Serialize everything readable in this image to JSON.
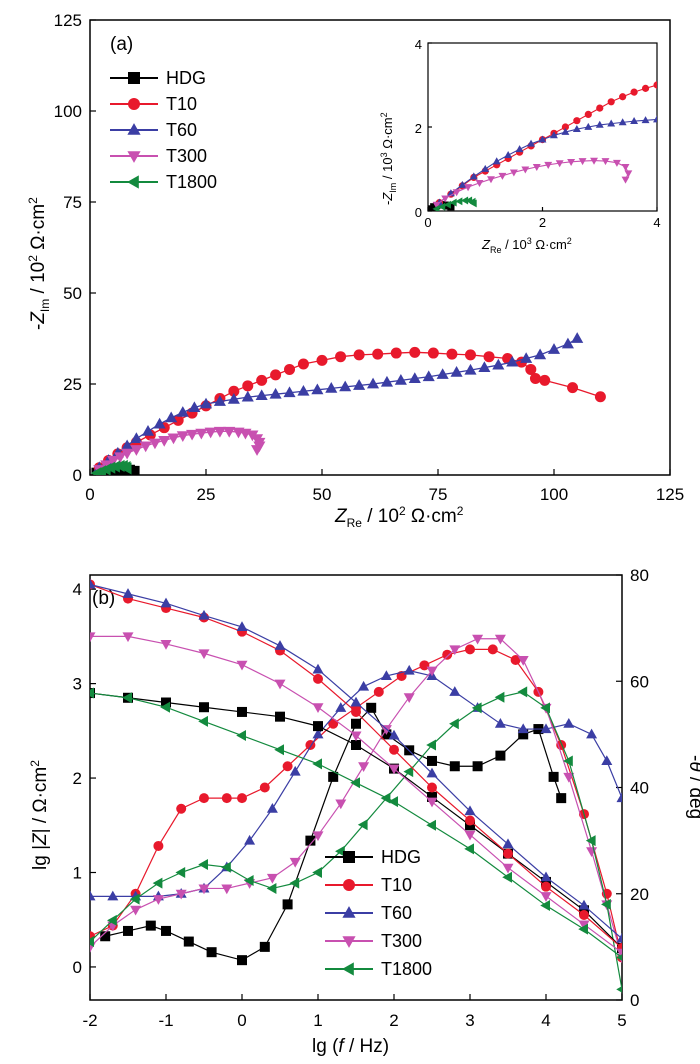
{
  "series_styles": [
    {
      "name": "HDG",
      "color": "#000000",
      "marker": "square"
    },
    {
      "name": "T10",
      "color": "#e8192c",
      "marker": "circle"
    },
    {
      "name": "T60",
      "color": "#3b3ea4",
      "marker": "triangle-up"
    },
    {
      "name": "T300",
      "color": "#c850b0",
      "marker": "triangle-down"
    },
    {
      "name": "T1800",
      "color": "#138a3e",
      "marker": "triangle-left"
    }
  ],
  "chart_data": [
    {
      "type": "scatter",
      "panel_label": "(a)",
      "xlabel": "Z_Re / 10^2 Ω·cm^2",
      "xlabel_main": "Z",
      "xlabel_sub": "Re",
      "xlabel_rest": " / 10",
      "xlabel_exp": "2",
      "xlabel_unit": " Ω·cm",
      "xlabel_unit_exp": "2",
      "ylabel": "-Z_Im / 10^2 Ω·cm^2",
      "ylabel_pre": "-",
      "ylabel_main": "Z",
      "ylabel_sub": "Im",
      "ylabel_rest": " / 10",
      "ylabel_exp": "2",
      "ylabel_unit": " Ω·cm",
      "ylabel_unit_exp": "2",
      "xlim": [
        0,
        125
      ],
      "ylim": [
        0,
        125
      ],
      "xticks": [
        "0",
        "25",
        "50",
        "75",
        "100",
        "125"
      ],
      "yticks": [
        "0",
        "25",
        "50",
        "75",
        "100",
        "125"
      ],
      "legend_position": "top-left",
      "series": [
        {
          "name": "HDG",
          "x": [
            1.5,
            2.5,
            3.5,
            4.5,
            5.5,
            6.5,
            7.5,
            8.5,
            9.5
          ],
          "y": [
            0.5,
            1,
            1.3,
            1.5,
            1.6,
            1.6,
            1.5,
            1.3,
            1
          ]
        },
        {
          "name": "T10",
          "x": [
            2,
            4,
            6,
            8,
            10,
            13,
            16,
            19,
            22,
            25,
            28,
            31,
            34,
            37,
            40,
            43,
            46,
            50,
            54,
            58,
            62,
            66,
            70,
            74,
            78,
            82,
            86,
            90,
            93,
            95,
            96,
            98,
            104,
            110
          ],
          "y": [
            2,
            4,
            5.8,
            7.5,
            9,
            11,
            13,
            15,
            17,
            19,
            21,
            23,
            24.5,
            26,
            27.5,
            29,
            30.5,
            31.5,
            32.5,
            33,
            33.2,
            33.5,
            33.7,
            33.5,
            33.2,
            33,
            32.5,
            32,
            31,
            29,
            26.5,
            26,
            24,
            21.5
          ]
        },
        {
          "name": "T60",
          "x": [
            2,
            4,
            6,
            8,
            10,
            12.5,
            15,
            17.5,
            20,
            22.5,
            25,
            28,
            31,
            34,
            37,
            40,
            43,
            46,
            49,
            52,
            55,
            58,
            61,
            64,
            67,
            70,
            73,
            76,
            79,
            82,
            85,
            88,
            91,
            94,
            97,
            100,
            103,
            105
          ],
          "y": [
            2,
            4,
            6,
            8,
            10,
            12,
            14,
            15.7,
            17.2,
            18.5,
            19.5,
            20.2,
            20.8,
            21.4,
            21.8,
            22.2,
            22.6,
            23,
            23.4,
            23.8,
            24.2,
            24.6,
            25,
            25.5,
            26,
            26.5,
            27,
            27.6,
            28.2,
            28.8,
            29.5,
            30.2,
            31,
            32,
            33,
            34.5,
            36,
            37.5
          ]
        },
        {
          "name": "T300",
          "x": [
            2,
            3.5,
            5,
            6.5,
            8,
            10,
            12,
            14,
            16,
            18,
            20,
            22,
            24,
            26,
            28,
            30,
            32,
            33.5,
            35,
            36,
            36.5,
            36.5,
            36
          ],
          "y": [
            1.5,
            2.8,
            4,
            5,
            6,
            7,
            8,
            8.8,
            9.5,
            10.2,
            10.8,
            11.2,
            11.5,
            11.8,
            12,
            12,
            11.8,
            11.5,
            11,
            10,
            9,
            8,
            7
          ]
        },
        {
          "name": "T1800",
          "x": [
            1.5,
            2.5,
            3.5,
            4.5,
            5.5,
            6.5,
            7.2,
            7.8,
            8
          ],
          "y": [
            0.5,
            1,
            1.5,
            2,
            2.3,
            2.5,
            2.5,
            2.2,
            1.8
          ]
        }
      ],
      "inset": {
        "xlabel": "Z_Re / 10^3 Ω·cm^2",
        "xlabel_main": "Z",
        "xlabel_sub": "Re",
        "xlabel_rest": " / 10",
        "xlabel_exp": "3",
        "xlabel_unit": " Ω·cm",
        "xlabel_unit_exp": "2",
        "ylabel": "-Z_Im / 10^3 Ω·cm^2",
        "ylabel_pre": "-",
        "ylabel_main": "Z",
        "ylabel_sub": "Im",
        "ylabel_rest": " / 10",
        "ylabel_exp": "3",
        "ylabel_unit": " Ω·cm",
        "ylabel_unit_exp": "2",
        "xlim": [
          0,
          4
        ],
        "ylim": [
          0,
          4
        ],
        "xticks": [
          "0",
          "2",
          "4"
        ],
        "yticks": [
          "0",
          "2",
          "4"
        ],
        "series": [
          {
            "name": "HDG",
            "x": [
              0.05,
              0.1,
              0.15,
              0.2,
              0.25,
              0.3,
              0.35,
              0.4
            ],
            "y": [
              0.05,
              0.1,
              0.13,
              0.15,
              0.15,
              0.14,
              0.12,
              0.1
            ]
          },
          {
            "name": "T10",
            "x": [
              0.2,
              0.4,
              0.6,
              0.8,
              1.0,
              1.2,
              1.4,
              1.6,
              1.8,
              2.0,
              2.2,
              2.4,
              2.6,
              2.8,
              3.0,
              3.2,
              3.4,
              3.6,
              3.8,
              4.0
            ],
            "y": [
              0.2,
              0.4,
              0.6,
              0.8,
              0.95,
              1.1,
              1.25,
              1.4,
              1.55,
              1.7,
              1.85,
              2.0,
              2.15,
              2.3,
              2.45,
              2.6,
              2.72,
              2.83,
              2.92,
              3.0
            ]
          },
          {
            "name": "T60",
            "x": [
              0.2,
              0.4,
              0.6,
              0.8,
              1.0,
              1.2,
              1.4,
              1.6,
              1.8,
              2.0,
              2.2,
              2.4,
              2.6,
              2.8,
              3.0,
              3.2,
              3.4,
              3.6,
              3.8,
              4.0
            ],
            "y": [
              0.2,
              0.42,
              0.62,
              0.82,
              1.0,
              1.18,
              1.33,
              1.47,
              1.6,
              1.7,
              1.8,
              1.88,
              1.95,
              2.0,
              2.05,
              2.08,
              2.11,
              2.14,
              2.16,
              2.18
            ]
          },
          {
            "name": "T300",
            "x": [
              0.15,
              0.3,
              0.5,
              0.7,
              0.9,
              1.1,
              1.3,
              1.5,
              1.7,
              1.9,
              2.1,
              2.3,
              2.5,
              2.7,
              2.9,
              3.1,
              3.3,
              3.45,
              3.5,
              3.45
            ],
            "y": [
              0.15,
              0.3,
              0.45,
              0.57,
              0.67,
              0.76,
              0.84,
              0.92,
              0.99,
              1.05,
              1.1,
              1.14,
              1.17,
              1.19,
              1.2,
              1.19,
              1.15,
              1.05,
              0.9,
              0.75
            ]
          },
          {
            "name": "T1800",
            "x": [
              0.15,
              0.25,
              0.35,
              0.45,
              0.55,
              0.65,
              0.72,
              0.78,
              0.8
            ],
            "y": [
              0.05,
              0.1,
              0.15,
              0.2,
              0.23,
              0.25,
              0.25,
              0.22,
              0.18
            ]
          }
        ]
      }
    },
    {
      "type": "line",
      "panel_label": "(b)",
      "xlabel": "lg (f / Hz)",
      "xlabel_pre": "lg (",
      "xlabel_italic": "f",
      "xlabel_post": " / Hz)",
      "ylabel": "lg |Z| / Ω·cm^2",
      "ylabel_pre": "lg |",
      "ylabel_italic": "Z",
      "ylabel_post": "| / Ω·cm",
      "ylabel_exp": "2",
      "y2label": "-θ / deg",
      "y2label_pre": "-",
      "y2label_italic": "θ",
      "y2label_post": " / deg",
      "xlim": [
        -2,
        5
      ],
      "ylim": [
        -0.35,
        4.15
      ],
      "y2lim": [
        0,
        80
      ],
      "xticks": [
        "-2",
        "-1",
        "0",
        "1",
        "2",
        "3",
        "4",
        "5"
      ],
      "yticks": [
        "0",
        "1",
        "2",
        "3",
        "4"
      ],
      "y2ticks": [
        "0",
        "20",
        "40",
        "60",
        "80"
      ],
      "legend_position": "bottom-center",
      "modulus_series": [
        {
          "name": "HDG",
          "x": [
            -2,
            -1.5,
            -1,
            -0.5,
            0,
            0.5,
            1,
            1.5,
            2,
            2.5,
            3,
            3.5,
            4,
            4.5,
            5
          ],
          "y": [
            2.9,
            2.85,
            2.8,
            2.75,
            2.7,
            2.65,
            2.55,
            2.35,
            2.1,
            1.8,
            1.5,
            1.2,
            0.9,
            0.6,
            0.2
          ]
        },
        {
          "name": "T10",
          "x": [
            -2,
            -1.5,
            -1,
            -0.5,
            0,
            0.5,
            1,
            1.5,
            2,
            2.5,
            3,
            3.5,
            4,
            4.5,
            5
          ],
          "y": [
            4.05,
            3.9,
            3.8,
            3.7,
            3.55,
            3.35,
            3.05,
            2.7,
            2.3,
            1.9,
            1.55,
            1.2,
            0.85,
            0.55,
            0.2
          ]
        },
        {
          "name": "T60",
          "x": [
            -2,
            -1.5,
            -1,
            -0.5,
            0,
            0.5,
            1,
            1.5,
            2,
            2.5,
            3,
            3.5,
            4,
            4.5,
            5
          ],
          "y": [
            4.05,
            3.95,
            3.85,
            3.72,
            3.6,
            3.4,
            3.15,
            2.8,
            2.45,
            2.05,
            1.65,
            1.3,
            0.95,
            0.65,
            0.3
          ]
        },
        {
          "name": "T300",
          "x": [
            -2,
            -1.5,
            -1,
            -0.5,
            0,
            0.5,
            1,
            1.5,
            2,
            2.5,
            3,
            3.5,
            4,
            4.5,
            5
          ],
          "y": [
            3.5,
            3.5,
            3.42,
            3.32,
            3.2,
            3.0,
            2.75,
            2.45,
            2.1,
            1.75,
            1.4,
            1.05,
            0.75,
            0.45,
            0.15
          ]
        },
        {
          "name": "T1800",
          "x": [
            -2,
            -1.5,
            -1,
            -0.5,
            0,
            0.5,
            1,
            1.5,
            2,
            2.5,
            3,
            3.5,
            4,
            4.5,
            5
          ],
          "y": [
            2.9,
            2.85,
            2.75,
            2.6,
            2.45,
            2.3,
            2.15,
            1.95,
            1.75,
            1.5,
            1.25,
            0.95,
            0.65,
            0.4,
            0.1
          ]
        }
      ],
      "phase_series": [
        {
          "name": "HDG",
          "x": [
            -1.8,
            -1.5,
            -1.2,
            -1,
            -0.7,
            -0.4,
            0,
            0.3,
            0.6,
            0.9,
            1.2,
            1.5,
            1.7,
            1.9,
            2.2,
            2.5,
            2.8,
            3.1,
            3.4,
            3.7,
            3.9,
            4.1,
            4.2
          ],
          "y": [
            12,
            13,
            14,
            13,
            11,
            9,
            7.5,
            10,
            18,
            30,
            42,
            52,
            55,
            50,
            47,
            45,
            44,
            44,
            46,
            50,
            51,
            42,
            38
          ]
        },
        {
          "name": "T10",
          "x": [
            -2,
            -1.7,
            -1.4,
            -1.1,
            -0.8,
            -0.5,
            -0.2,
            0,
            0.3,
            0.6,
            0.9,
            1.2,
            1.5,
            1.8,
            2.1,
            2.4,
            2.7,
            3.0,
            3.3,
            3.6,
            3.9,
            4.2,
            4.5,
            4.8,
            5
          ],
          "y": [
            12,
            14,
            20,
            29,
            36,
            38,
            38,
            38,
            40,
            44,
            48,
            52,
            55,
            58,
            61,
            63,
            65,
            66,
            66,
            64,
            58,
            48,
            35,
            20,
            8
          ]
        },
        {
          "name": "T60",
          "x": [
            -2,
            -1.7,
            -1.4,
            -1.1,
            -0.8,
            -0.5,
            -0.2,
            0.1,
            0.4,
            0.7,
            1.0,
            1.3,
            1.6,
            1.9,
            2.2,
            2.5,
            2.8,
            3.1,
            3.4,
            3.7,
            4.0,
            4.3,
            4.6,
            4.8,
            5
          ],
          "y": [
            19.5,
            19.5,
            19.5,
            19.5,
            20,
            21,
            25,
            30,
            36,
            43,
            50,
            55,
            59,
            61,
            62,
            61,
            58,
            55,
            52,
            51,
            51,
            52,
            50,
            45,
            38
          ]
        },
        {
          "name": "T300",
          "x": [
            -2,
            -1.7,
            -1.4,
            -1.1,
            -0.8,
            -0.5,
            -0.2,
            0.1,
            0.4,
            0.7,
            1.0,
            1.3,
            1.6,
            1.9,
            2.2,
            2.5,
            2.8,
            3.1,
            3.4,
            3.7,
            4.0,
            4.3,
            4.6,
            4.8,
            5
          ],
          "y": [
            10,
            14,
            17,
            19,
            20,
            21,
            21,
            22,
            23,
            26,
            31,
            37,
            44,
            51,
            57,
            62,
            66,
            68,
            68,
            64,
            55,
            42,
            28,
            18,
            8
          ]
        },
        {
          "name": "T1800",
          "x": [
            -2,
            -1.7,
            -1.4,
            -1.1,
            -0.8,
            -0.5,
            -0.2,
            0.1,
            0.4,
            0.7,
            1.0,
            1.3,
            1.6,
            1.9,
            2.2,
            2.5,
            2.8,
            3.1,
            3.4,
            3.7,
            4.0,
            4.3,
            4.6,
            4.8,
            5
          ],
          "y": [
            11,
            15,
            19,
            22,
            24,
            25.5,
            25,
            22.5,
            21,
            22,
            24,
            28,
            33,
            38,
            43,
            48,
            52,
            55,
            57,
            58,
            55,
            45,
            30,
            18,
            2
          ]
        }
      ]
    }
  ]
}
